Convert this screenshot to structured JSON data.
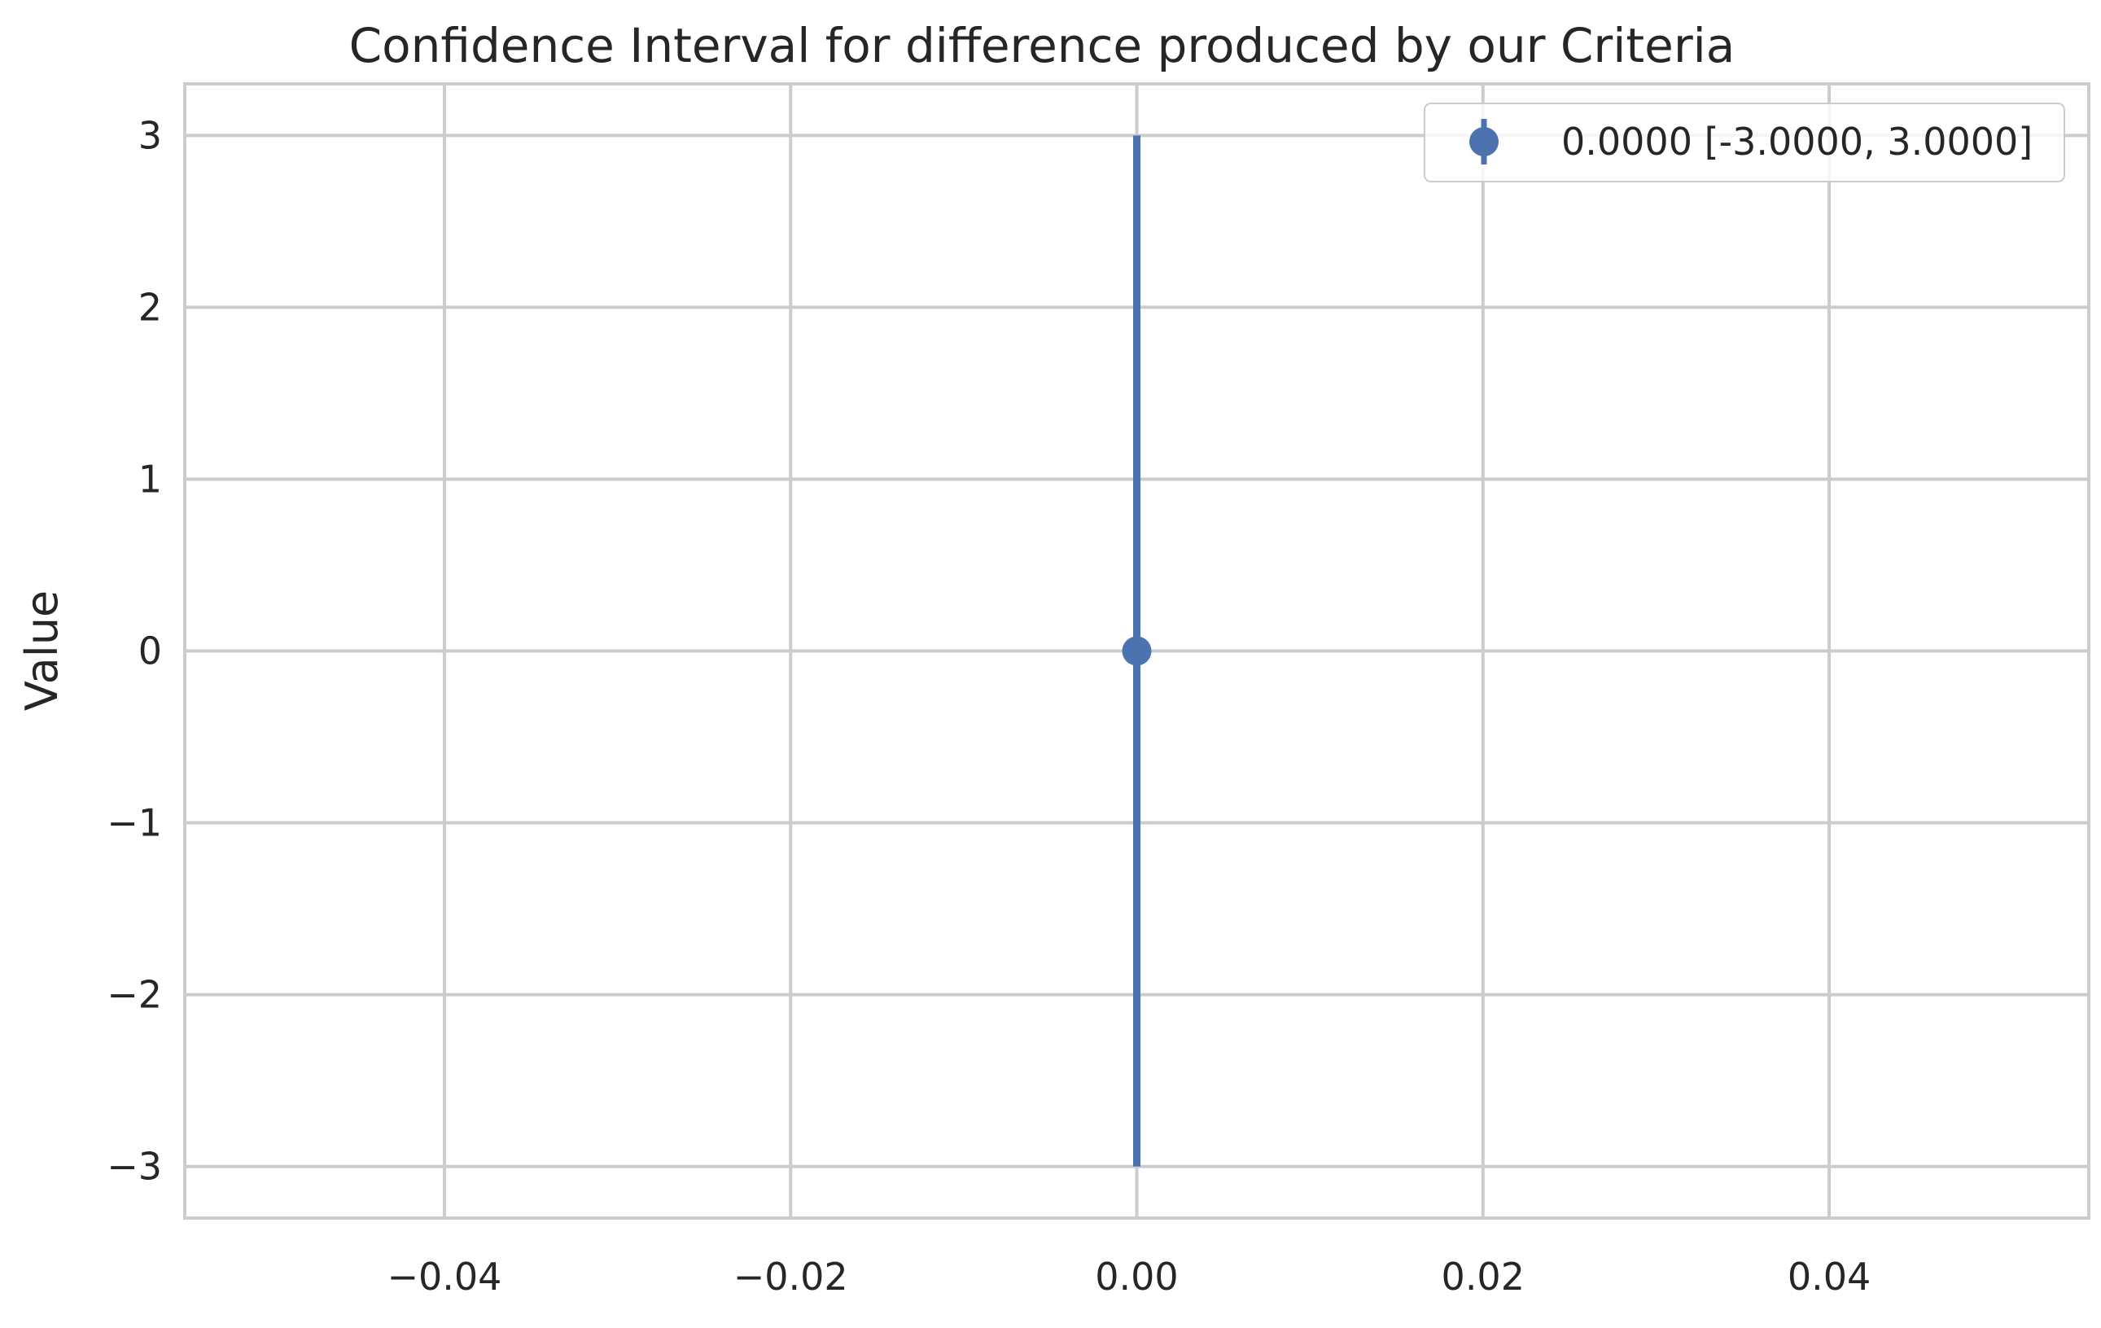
{
  "chart_data": {
    "type": "errorbar",
    "title": "Confidence Interval for difference produced by our Criteria",
    "xlabel": "",
    "ylabel": "Value",
    "xlim": [
      -0.055,
      0.055
    ],
    "ylim": [
      -3.3,
      3.3
    ],
    "x_ticks": [
      -0.04,
      -0.02,
      0.0,
      0.02,
      0.04
    ],
    "x_tick_labels": [
      "−0.04",
      "−0.02",
      "0.00",
      "0.02",
      "0.04"
    ],
    "y_ticks": [
      -3,
      -2,
      -1,
      0,
      1,
      2,
      3
    ],
    "y_tick_labels": [
      "−3",
      "−2",
      "−1",
      "0",
      "1",
      "2",
      "3"
    ],
    "grid": true,
    "legend_position": "top-right",
    "series": [
      {
        "name": "0.0000 [-3.0000, 3.0000]",
        "x": 0.0,
        "y": 0.0,
        "lower": -3.0,
        "upper": 3.0,
        "color": "#4c72b0"
      }
    ]
  }
}
